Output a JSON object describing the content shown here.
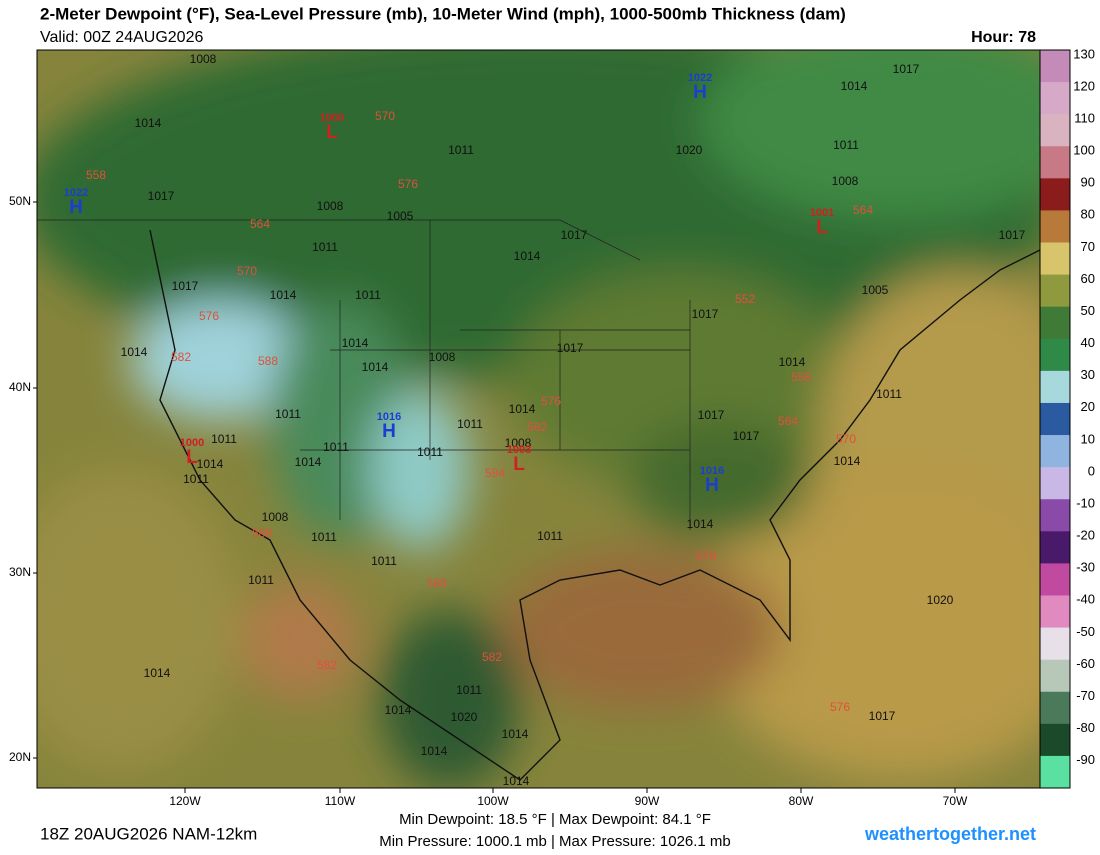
{
  "header": {
    "title": "2-Meter Dewpoint (°F), Sea-Level Pressure (mb), 10-Meter Wind (mph), 1000-500mb Thickness (dam)",
    "valid": "Valid: 00Z 24AUG2026",
    "hour": "Hour: 78"
  },
  "axes": {
    "lat_labels": [
      "50N",
      "40N",
      "30N",
      "20N"
    ],
    "lon_labels": [
      "120W",
      "110W",
      "100W",
      "90W",
      "80W",
      "70W"
    ]
  },
  "colorbar": {
    "labels": [
      "130",
      "120",
      "110",
      "100",
      "90",
      "80",
      "70",
      "60",
      "50",
      "40",
      "30",
      "20",
      "10",
      "0",
      "-10",
      "-20",
      "-30",
      "-40",
      "-50",
      "-60",
      "-70",
      "-80",
      "-90"
    ],
    "colors": [
      "#c48bb8",
      "#d6a9c8",
      "#d9b3c0",
      "#c77a86",
      "#8a1c1c",
      "#b87a3a",
      "#d8c46a",
      "#8f9a3e",
      "#3f7a36",
      "#2f8a48",
      "#a7d9dc",
      "#2a5aa0",
      "#8fb4e0",
      "#c9b8e6",
      "#8a4aa8",
      "#4a1a6a",
      "#c04aa0",
      "#e08ac0",
      "#e8e0e8",
      "#b8c8b8",
      "#4a7a5a",
      "#1a4a2a",
      "#5ae0a0"
    ]
  },
  "isobars": [
    "1008",
    "1014",
    "1017",
    "1008",
    "1005",
    "1011",
    "1017",
    "1014",
    "1011",
    "1014",
    "1014",
    "1014",
    "1008",
    "1017",
    "1011",
    "1011",
    "1014",
    "1011",
    "1014",
    "1011",
    "1011",
    "1008",
    "1014",
    "1011",
    "1008",
    "1011",
    "1011",
    "1011",
    "1011",
    "1014",
    "1014",
    "1017",
    "1011",
    "1020",
    "1014",
    "1017",
    "1011",
    "1008",
    "1017",
    "1005",
    "1017",
    "1014",
    "1011",
    "1017",
    "1017",
    "1014",
    "1014",
    "1020",
    "1017",
    "1011",
    "1020",
    "1014",
    "1014",
    "1014",
    "1014"
  ],
  "thickness": [
    "570",
    "576",
    "558",
    "564",
    "570",
    "576",
    "582",
    "588",
    "582",
    "576",
    "594",
    "588",
    "576",
    "588",
    "582",
    "582",
    "576",
    "552",
    "558",
    "564",
    "570",
    "564"
  ],
  "centers": [
    {
      "type": "H",
      "value": "1022"
    },
    {
      "type": "H",
      "value": "1022"
    },
    {
      "type": "L",
      "value": "1000"
    },
    {
      "type": "L",
      "value": "1001"
    },
    {
      "type": "H",
      "value": "1016"
    },
    {
      "type": "L",
      "value": "1000"
    },
    {
      "type": "L",
      "value": "1003"
    },
    {
      "type": "H",
      "value": "1016"
    }
  ],
  "footer": {
    "run": "18Z 20AUG2026 NAM-12km",
    "stats1": "Min Dewpoint:  18.5 °F | Max Dewpoint:  84.1 °F",
    "stats2": "Min Pressure: 1000.1 mb | Max Pressure: 1026.1 mb",
    "site": "weathertogether.net"
  }
}
